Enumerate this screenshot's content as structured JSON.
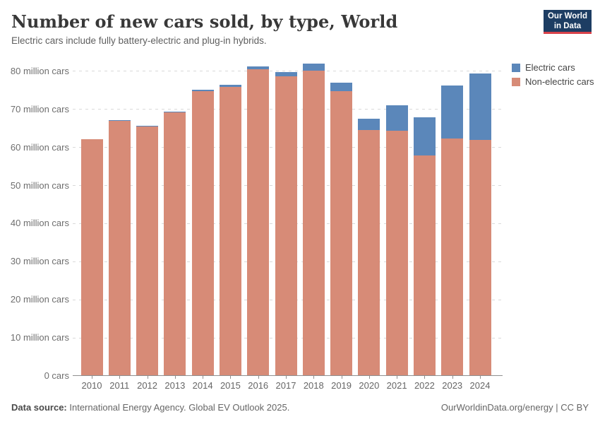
{
  "header": {
    "title": "Number of new cars sold, by type, World",
    "subtitle": "Electric cars include fully battery-electric and plug-in hybrids.",
    "logo": {
      "line1": "Our World",
      "line2": "in Data"
    }
  },
  "colors": {
    "electric": "#5b87ba",
    "non_electric": "#d78b77",
    "logo_navy": "#1d3d63",
    "logo_red": "#d8424a"
  },
  "chart_data": {
    "type": "bar",
    "stacked": true,
    "title": "Number of new cars sold, by type, World",
    "unit": "million cars",
    "categories": [
      "2010",
      "2011",
      "2012",
      "2013",
      "2014",
      "2015",
      "2016",
      "2017",
      "2018",
      "2019",
      "2020",
      "2021",
      "2022",
      "2023",
      "2024"
    ],
    "series": [
      {
        "name": "Electric cars",
        "color": "#5b87ba",
        "values": [
          0,
          0.05,
          0.13,
          0.2,
          0.35,
          0.55,
          0.75,
          1.2,
          2.0,
          2.2,
          2.9,
          6.6,
          10.0,
          13.9,
          17.4
        ]
      },
      {
        "name": "Non-electric cars",
        "color": "#d78b77",
        "values": [
          62.0,
          66.9,
          65.4,
          69.0,
          74.6,
          75.8,
          80.4,
          78.5,
          79.9,
          74.7,
          64.4,
          64.3,
          57.7,
          62.2,
          61.8
        ]
      }
    ],
    "ylim": [
      0,
      82.4
    ],
    "yticks": [
      {
        "value": 0,
        "label": "0 cars"
      },
      {
        "value": 10,
        "label": "10 million cars"
      },
      {
        "value": 20,
        "label": "20 million cars"
      },
      {
        "value": 30,
        "label": "30 million cars"
      },
      {
        "value": 40,
        "label": "40 million cars"
      },
      {
        "value": 50,
        "label": "50 million cars"
      },
      {
        "value": 60,
        "label": "60 million cars"
      },
      {
        "value": 70,
        "label": "70 million cars"
      },
      {
        "value": 80,
        "label": "80 million cars"
      }
    ],
    "grid": "horizontal-dashed",
    "legend_position": "right"
  },
  "legend": {
    "items": [
      {
        "label": "Electric cars",
        "color": "#5b87ba"
      },
      {
        "label": "Non-electric cars",
        "color": "#d78b77"
      }
    ]
  },
  "footer": {
    "source_label": "Data source:",
    "source_text": " International Energy Agency. Global EV Outlook 2025.",
    "credit_link": "OurWorldinData.org/energy",
    "credit_rest": " | CC BY"
  }
}
